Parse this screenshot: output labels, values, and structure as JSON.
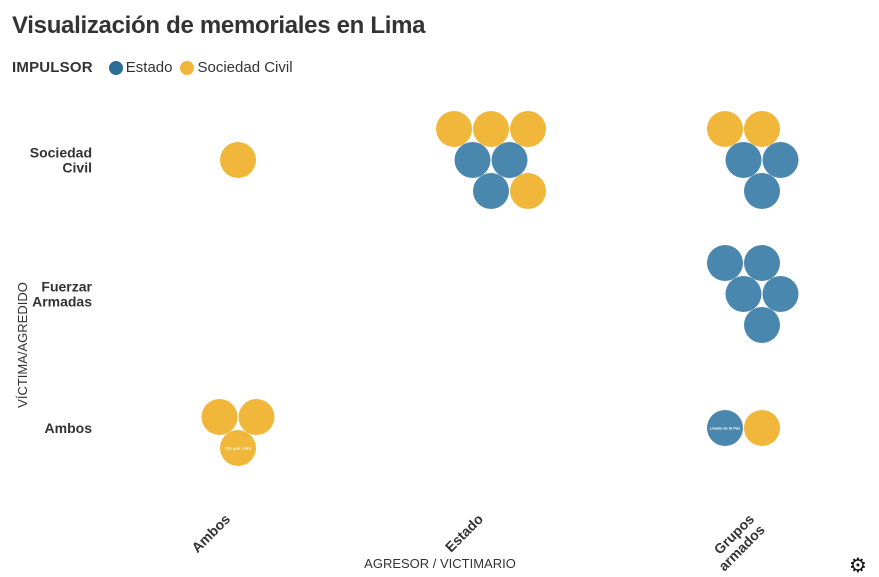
{
  "title": "Visualización de memoriales en Lima",
  "legend": {
    "title": "IMPULSOR",
    "items": [
      {
        "label": "Estado",
        "color": "#2b6f97"
      },
      {
        "label": "Sociedad Civil",
        "color": "#f0b73a"
      }
    ]
  },
  "colors": {
    "Estado": "#4a87ae",
    "Sociedad Civil": "#f0b73a"
  },
  "chart_data": {
    "type": "scatter",
    "title": "Visualización de memoriales en Lima",
    "xlabel": "AGRESOR / VICTIMARIO",
    "ylabel": "VÍCTIMA/AGREDIDO",
    "x_categories": [
      "Ambos",
      "Estado",
      "Grupos armados"
    ],
    "y_categories": [
      "Sociedad Civil",
      "Fuerzar Armadas",
      "Ambos"
    ],
    "groups": [
      {
        "x": "Ambos",
        "y": "Sociedad Civil",
        "points": [
          {
            "impulsor": "Sociedad Civil",
            "label": ""
          }
        ]
      },
      {
        "x": "Estado",
        "y": "Sociedad Civil",
        "points": [
          {
            "impulsor": "Sociedad Civil",
            "label": ""
          },
          {
            "impulsor": "Sociedad Civil",
            "label": ""
          },
          {
            "impulsor": "Sociedad Civil",
            "label": ""
          },
          {
            "impulsor": "Estado",
            "label": ""
          },
          {
            "impulsor": "Estado",
            "label": ""
          },
          {
            "impulsor": "Estado",
            "label": ""
          },
          {
            "impulsor": "Sociedad Civil",
            "label": ""
          }
        ]
      },
      {
        "x": "Grupos armados",
        "y": "Sociedad Civil",
        "points": [
          {
            "impulsor": "Sociedad Civil",
            "label": ""
          },
          {
            "impulsor": "Sociedad Civil",
            "label": ""
          },
          {
            "impulsor": "Estado",
            "label": ""
          },
          {
            "impulsor": "Estado",
            "label": ""
          },
          {
            "impulsor": "Estado",
            "label": ""
          }
        ]
      },
      {
        "x": "Grupos armados",
        "y": "Fuerzar Armadas",
        "points": [
          {
            "impulsor": "Estado",
            "label": ""
          },
          {
            "impulsor": "Estado",
            "label": ""
          },
          {
            "impulsor": "Estado",
            "label": ""
          },
          {
            "impulsor": "Estado",
            "label": ""
          },
          {
            "impulsor": "Estado",
            "label": ""
          }
        ]
      },
      {
        "x": "Ambos",
        "y": "Ambos",
        "points": [
          {
            "impulsor": "Sociedad Civil",
            "label": ""
          },
          {
            "impulsor": "Sociedad Civil",
            "label": ""
          },
          {
            "impulsor": "Sociedad Civil",
            "label": "Ojo que Llora"
          }
        ]
      },
      {
        "x": "Grupos armados",
        "y": "Ambos",
        "points": [
          {
            "impulsor": "Estado",
            "label": "Lhudo de la Paz"
          },
          {
            "impulsor": "Sociedad Civil",
            "label": ""
          }
        ]
      }
    ]
  },
  "icons": {
    "settings": "gear-icon"
  }
}
